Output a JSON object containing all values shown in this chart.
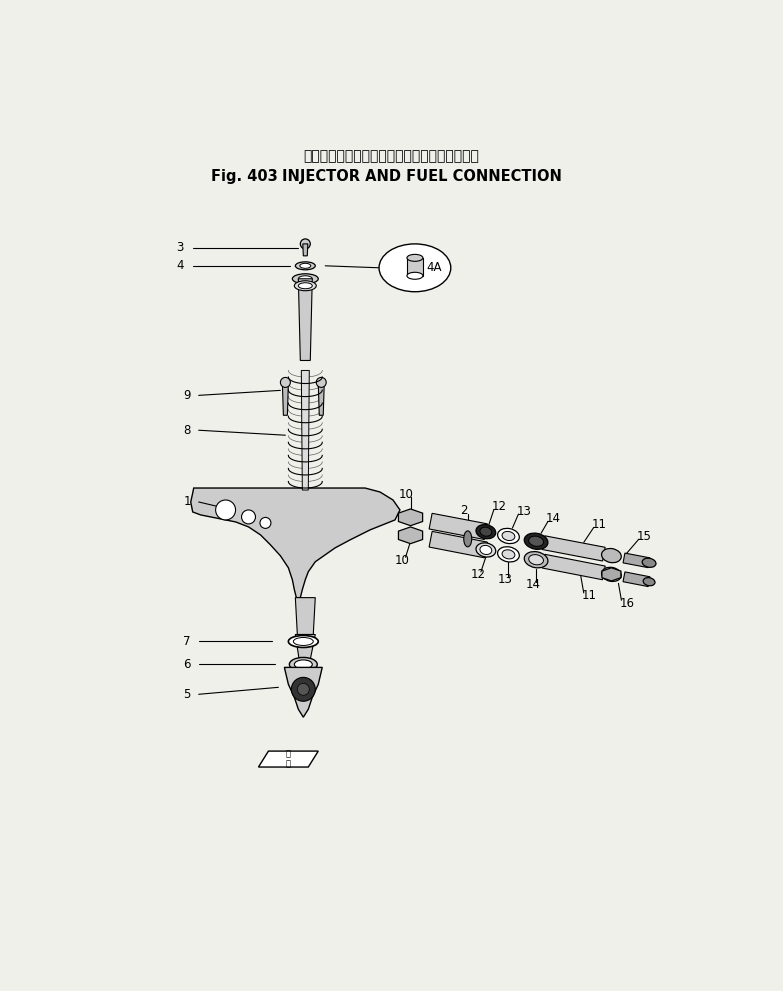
{
  "title_japanese": "インジェクタ　および　フエル　コネクション",
  "title_english": "INJECTOR AND FUEL CONNECTION",
  "fig_label": "Fig. 403",
  "background_color": "#f0f0eb",
  "figsize": [
    7.83,
    9.91
  ],
  "dpi": 100
}
